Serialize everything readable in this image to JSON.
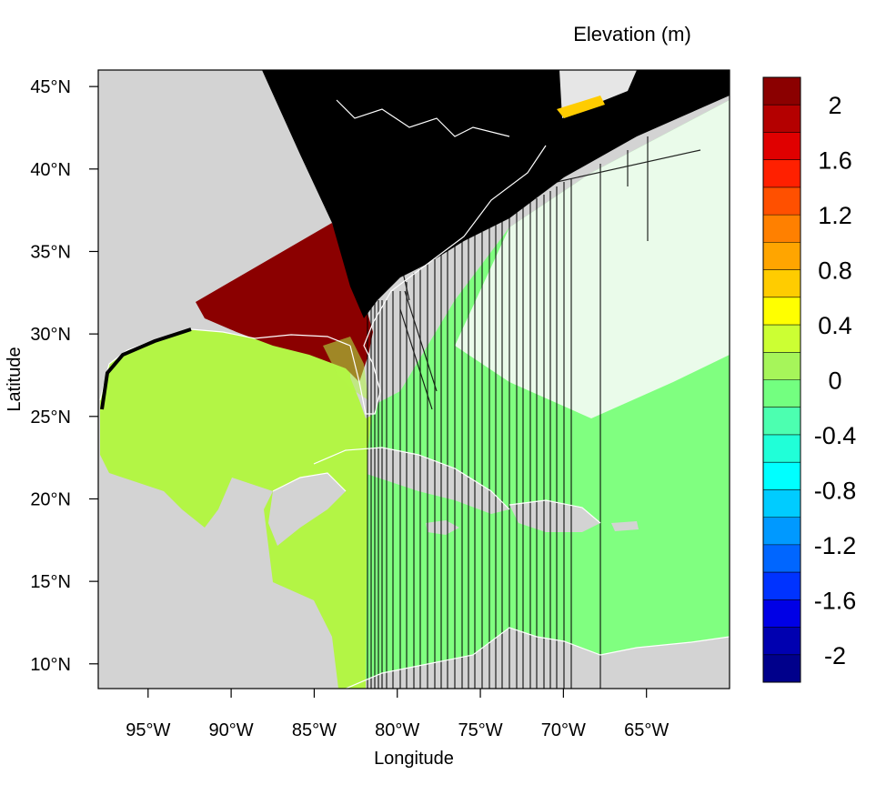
{
  "chart_data": {
    "type": "heatmap",
    "title": "Elevation (m)",
    "xlabel": "Longitude",
    "ylabel": "Latitude",
    "xlim": [
      -98,
      -60
    ],
    "ylim": [
      8.5,
      46
    ],
    "x_ticks": [
      {
        "value": -95,
        "label": "95°W"
      },
      {
        "value": -90,
        "label": "90°W"
      },
      {
        "value": -85,
        "label": "85°W"
      },
      {
        "value": -80,
        "label": "80°W"
      },
      {
        "value": -75,
        "label": "75°W"
      },
      {
        "value": -70,
        "label": "70°W"
      },
      {
        "value": -65,
        "label": "65°W"
      }
    ],
    "y_ticks": [
      {
        "value": 45,
        "label": "45°N"
      },
      {
        "value": 40,
        "label": "40°N"
      },
      {
        "value": 35,
        "label": "35°N"
      },
      {
        "value": 30,
        "label": "30°N"
      },
      {
        "value": 25,
        "label": "25°N"
      },
      {
        "value": 20,
        "label": "20°N"
      },
      {
        "value": 15,
        "label": "15°N"
      },
      {
        "value": 10,
        "label": "10°N"
      }
    ],
    "colorbar": {
      "min": -2.2,
      "max": 2.2,
      "step": 0.2,
      "labels": [
        {
          "value": 2,
          "label": "2"
        },
        {
          "value": 1.6,
          "label": "1.6"
        },
        {
          "value": 1.2,
          "label": "1.2"
        },
        {
          "value": 0.8,
          "label": "0.8"
        },
        {
          "value": 0.4,
          "label": "0.4"
        },
        {
          "value": 0,
          "label": "0"
        },
        {
          "value": -0.4,
          "label": "-0.4"
        },
        {
          "value": -0.8,
          "label": "-0.8"
        },
        {
          "value": -1.2,
          "label": "-1.2"
        },
        {
          "value": -1.6,
          "label": "-1.6"
        },
        {
          "value": -2,
          "label": "-2"
        }
      ],
      "colors_top_to_bottom": [
        "#8b0000",
        "#b40000",
        "#e00000",
        "#ff2000",
        "#ff5000",
        "#ff8000",
        "#ffa500",
        "#ffcc00",
        "#ffff00",
        "#ccff33",
        "#a6f55a",
        "#73ff80",
        "#4cffb0",
        "#20ffd8",
        "#00ffff",
        "#00ccff",
        "#0099ff",
        "#0066ff",
        "#0033ff",
        "#0000e6",
        "#0000b0",
        "#00008b"
      ]
    },
    "colors": {
      "land": "#d3d3d3",
      "gulf_value_color": "#b3f545",
      "atlantic_value_color": "#80ff80",
      "dry_high_value_color": "#8b0000",
      "missing_wedge_color": "#000000",
      "coastline_color": "#ffffff"
    }
  }
}
